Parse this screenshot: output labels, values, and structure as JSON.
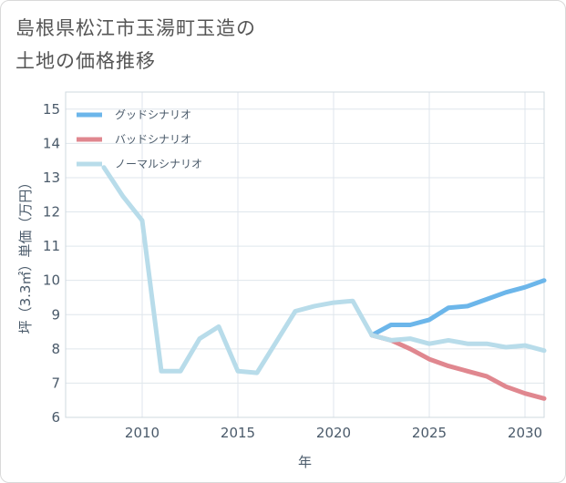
{
  "title_line1": "島根県松江市玉湯町玉造の",
  "title_line2": "土地の価格推移",
  "chart_data": {
    "type": "line",
    "xlabel": "年",
    "ylabel": "坪（3.3㎡）単価（万円）",
    "xlim": [
      2006,
      2031
    ],
    "ylim": [
      6,
      15.5
    ],
    "xticks": [
      2010,
      2015,
      2020,
      2025,
      2030
    ],
    "yticks": [
      6,
      7,
      8,
      9,
      10,
      11,
      12,
      13,
      14,
      15
    ],
    "grid": true,
    "legend_position": "top-left",
    "series": [
      {
        "name": "グッドシナリオ",
        "color": "#6cb6ea",
        "x": [
          2022,
          2023,
          2024,
          2025,
          2026,
          2027,
          2028,
          2029,
          2030,
          2031
        ],
        "y": [
          8.4,
          8.7,
          8.7,
          8.85,
          9.2,
          9.25,
          9.45,
          9.65,
          9.8,
          10.0
        ]
      },
      {
        "name": "バッドシナリオ",
        "color": "#e0878f",
        "x": [
          2022,
          2023,
          2024,
          2025,
          2026,
          2027,
          2028,
          2029,
          2030,
          2031
        ],
        "y": [
          8.4,
          8.25,
          8.0,
          7.7,
          7.5,
          7.35,
          7.2,
          6.9,
          6.7,
          6.55
        ]
      },
      {
        "name": "ノーマルシナリオ",
        "color": "#b8dcea",
        "x": [
          2008,
          2009,
          2010,
          2011,
          2012,
          2013,
          2014,
          2015,
          2016,
          2017,
          2018,
          2019,
          2020,
          2021,
          2022,
          2023,
          2024,
          2025,
          2026,
          2027,
          2028,
          2029,
          2030,
          2031
        ],
        "y": [
          13.3,
          12.45,
          11.75,
          7.35,
          7.35,
          8.3,
          8.65,
          7.35,
          7.3,
          8.2,
          9.1,
          9.25,
          9.35,
          9.4,
          8.4,
          8.25,
          8.3,
          8.15,
          8.25,
          8.15,
          8.15,
          8.05,
          8.1,
          7.95
        ]
      }
    ]
  }
}
